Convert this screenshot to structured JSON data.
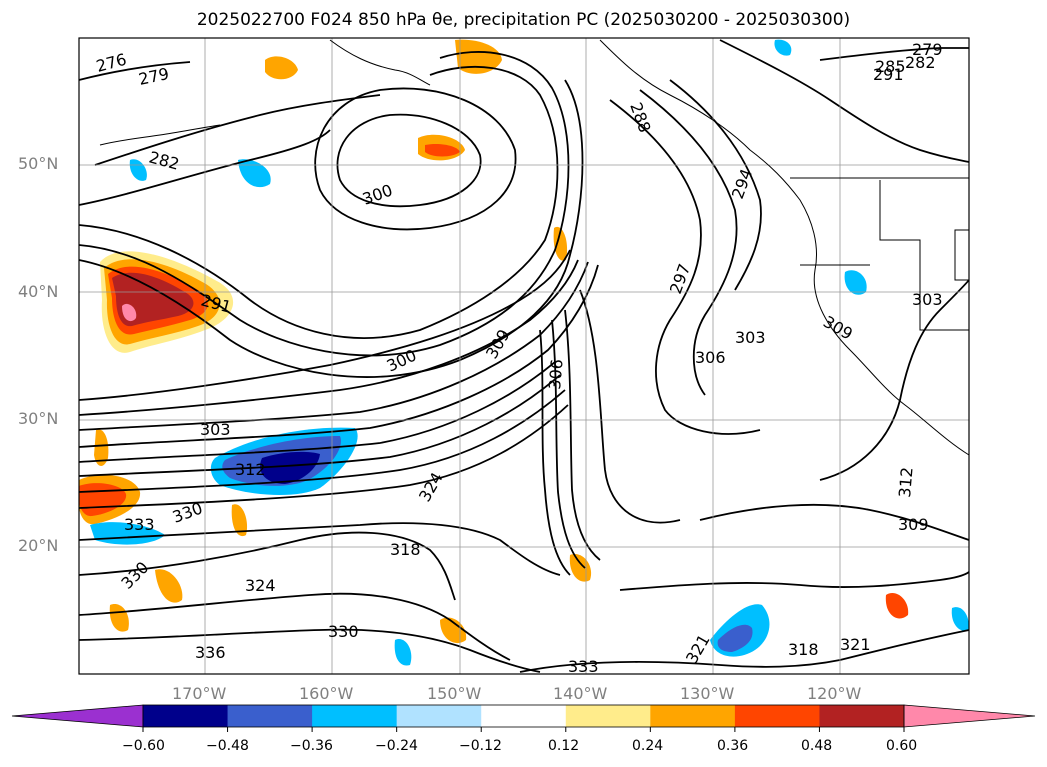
{
  "title": "2025022700 F024 850 hPa θe, precipitation PC (2025030200 - 2025030300)",
  "map": {
    "lat_labels": [
      "50°N",
      "40°N",
      "30°N",
      "20°N"
    ],
    "lon_labels": [
      "170°W",
      "160°W",
      "150°W",
      "140°W",
      "130°W",
      "120°W"
    ],
    "contour_labels": [
      "276",
      "279",
      "282",
      "300",
      "291",
      "288",
      "294",
      "297",
      "303",
      "306",
      "309",
      "300",
      "303",
      "306",
      "309",
      "312",
      "312",
      "309",
      "303",
      "318",
      "324",
      "330",
      "333",
      "336",
      "330",
      "324",
      "321",
      "318",
      "321",
      "330",
      "333",
      "279",
      "282",
      "285",
      "291"
    ]
  },
  "colorbar": {
    "colors": [
      "#9b30d0",
      "#00008b",
      "#3a5fcd",
      "#00bfff",
      "#b0e2ff",
      "#ffffff",
      "#ffec8b",
      "#ffa500",
      "#ff4500",
      "#b22222",
      "#ff88aa"
    ],
    "tick_labels": [
      "−0.60",
      "−0.48",
      "−0.36",
      "−0.24",
      "−0.12",
      "0.12",
      "0.24",
      "0.36",
      "0.48",
      "0.60"
    ]
  }
}
